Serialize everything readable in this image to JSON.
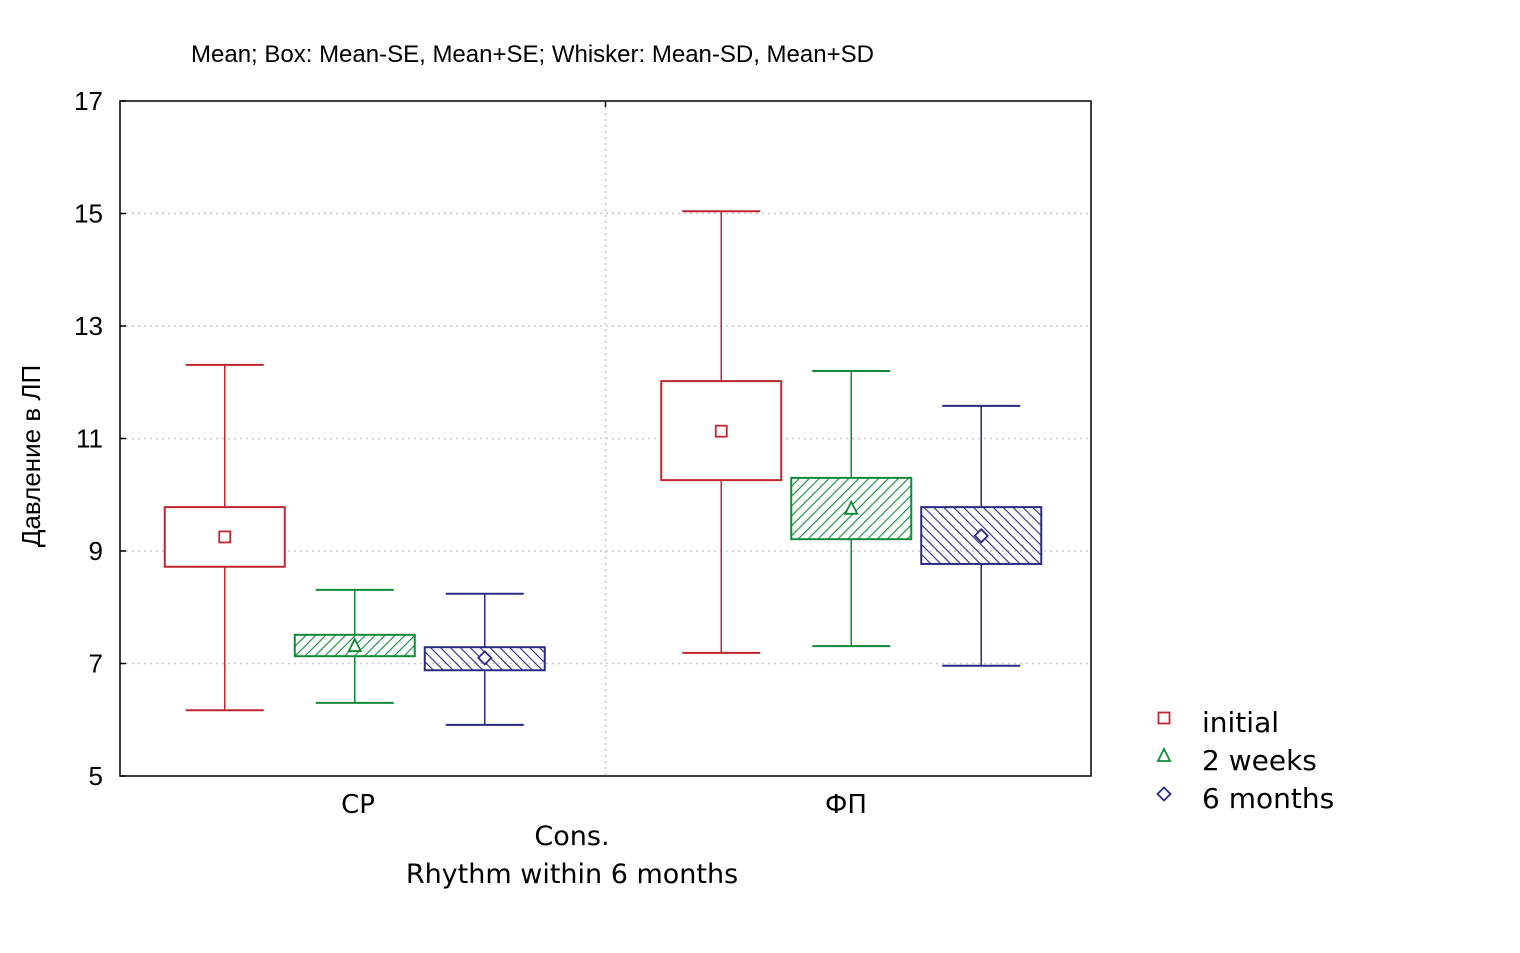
{
  "chart_data": {
    "type": "box",
    "title": "Mean; Box: Mean-SE, Mean+SE; Whisker: Mean-SD, Mean+SD",
    "ylabel": "Давление в ЛП",
    "xlabel_lines": [
      "Cons.",
      "Rhythm within 6 months"
    ],
    "ylim": [
      5,
      17
    ],
    "yticks": [
      5,
      7,
      9,
      11,
      13,
      15,
      17
    ],
    "grid": true,
    "legend_position": "bottom-right outside",
    "categories": [
      "CP",
      "ФП"
    ],
    "series": [
      {
        "name": "initial",
        "color": "#c0262d",
        "marker": "square",
        "hatch": "none",
        "groups": [
          {
            "mean": 9.25,
            "box_low": 8.72,
            "box_high": 9.78,
            "whisker_low": 6.17,
            "whisker_high": 12.31
          },
          {
            "mean": 11.13,
            "box_low": 10.26,
            "box_high": 12.02,
            "whisker_low": 7.19,
            "whisker_high": 15.04
          }
        ]
      },
      {
        "name": "2 weeks",
        "color": "#118a3a",
        "marker": "triangle",
        "hatch": "forward",
        "groups": [
          {
            "mean": 7.31,
            "box_low": 7.13,
            "box_high": 7.51,
            "whisker_low": 6.3,
            "whisker_high": 8.31
          },
          {
            "mean": 9.75,
            "box_low": 9.21,
            "box_high": 10.3,
            "whisker_low": 7.31,
            "whisker_high": 12.2
          }
        ]
      },
      {
        "name": "6 months",
        "color": "#2b2a82",
        "marker": "diamond",
        "hatch": "backward",
        "groups": [
          {
            "mean": 7.1,
            "box_low": 6.88,
            "box_high": 7.29,
            "whisker_low": 5.91,
            "whisker_high": 8.24
          },
          {
            "mean": 9.27,
            "box_low": 8.77,
            "box_high": 9.78,
            "whisker_low": 6.96,
            "whisker_high": 11.58
          }
        ]
      }
    ]
  }
}
